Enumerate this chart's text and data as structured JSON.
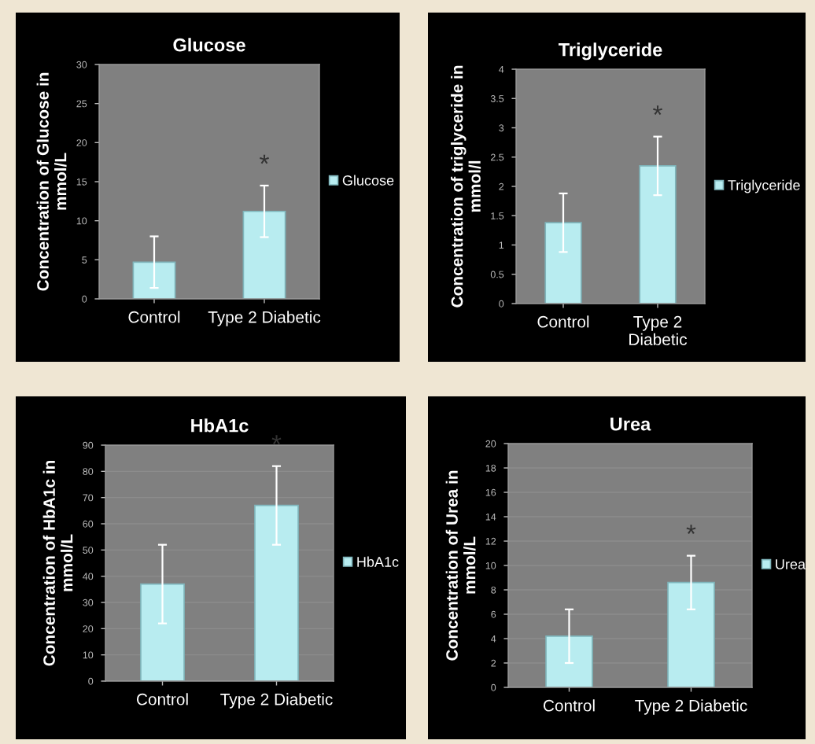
{
  "chart_data": [
    {
      "type": "bar",
      "title": "Glucose",
      "ylabel": "Concentration of Glucose in\nmmol/L",
      "categories": [
        "Control",
        "Type 2 Diabetic"
      ],
      "series": [
        {
          "name": "Glucose",
          "color": "#b8ecf0",
          "values": [
            4.7,
            11.2
          ],
          "errors": [
            3.3,
            3.3
          ]
        }
      ],
      "ylim": [
        0,
        30
      ],
      "yticks": [
        0,
        5,
        10,
        15,
        20,
        25,
        30
      ],
      "legend": "right",
      "annotations": [
        "*"
      ]
    },
    {
      "type": "bar",
      "title": "Triglyceride",
      "ylabel": "Concentration of triglyceride in\nmmol/l",
      "categories": [
        "Control",
        "Type 2\nDiabetic"
      ],
      "series": [
        {
          "name": "Triglyceride",
          "color": "#b8ecf0",
          "values": [
            1.38,
            2.35
          ],
          "errors": [
            0.5,
            0.5
          ]
        }
      ],
      "ylim": [
        0,
        4
      ],
      "yticks": [
        0,
        0.5,
        1,
        1.5,
        2,
        2.5,
        3,
        3.5,
        4
      ],
      "legend": "right",
      "annotations": [
        "*"
      ]
    },
    {
      "type": "bar",
      "title": "HbA1c",
      "ylabel": "Concentration of HbA1c in\nmmol/L",
      "categories": [
        "Control",
        "Type 2 Diabetic"
      ],
      "series": [
        {
          "name": "HbA1c",
          "color": "#b8ecf0",
          "values": [
            37,
            67
          ],
          "errors": [
            15,
            15
          ]
        }
      ],
      "ylim": [
        0,
        90
      ],
      "yticks": [
        0,
        10,
        20,
        30,
        40,
        50,
        60,
        70,
        80,
        90
      ],
      "grid": "y",
      "legend": "right",
      "annotations": [
        "*"
      ]
    },
    {
      "type": "bar",
      "title": "Urea",
      "ylabel": "Concentration of Urea in\nmmol/L",
      "categories": [
        "Control",
        "Type 2 Diabetic"
      ],
      "series": [
        {
          "name": "Urea",
          "color": "#b8ecf0",
          "values": [
            4.2,
            8.6
          ],
          "errors": [
            2.2,
            2.2
          ]
        }
      ],
      "ylim": [
        0,
        20
      ],
      "yticks": [
        0,
        2,
        4,
        6,
        8,
        10,
        12,
        14,
        16,
        18,
        20
      ],
      "grid": "y",
      "legend": "right",
      "annotations": [
        "*"
      ]
    }
  ]
}
